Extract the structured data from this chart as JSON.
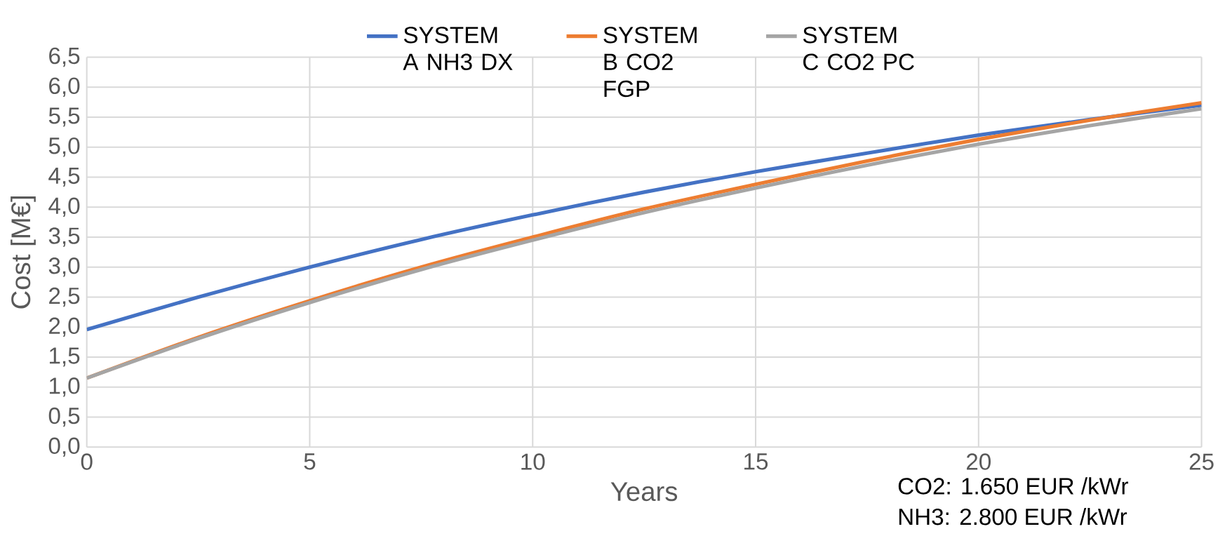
{
  "chart_data": {
    "type": "line",
    "xlabel": "Years",
    "ylabel": "Cost [M€]",
    "x": [
      0,
      2.5,
      5,
      7.5,
      10,
      12.5,
      15,
      17.5,
      20,
      22.5,
      25
    ],
    "series": [
      {
        "name": "SYSTEM A NH3 DX",
        "color": "#4472c4",
        "values": [
          1.96,
          2.5,
          3.0,
          3.46,
          3.87,
          4.25,
          4.59,
          4.9,
          5.2,
          5.46,
          5.7
        ]
      },
      {
        "name": "SYSTEM B CO2 FGP",
        "color": "#ed7d31",
        "values": [
          1.15,
          1.83,
          2.44,
          3.0,
          3.5,
          3.97,
          4.38,
          4.77,
          5.13,
          5.45,
          5.74
        ]
      },
      {
        "name": "SYSTEM C CO2 PC",
        "color": "#a5a5a5",
        "values": [
          1.15,
          1.81,
          2.41,
          2.96,
          3.45,
          3.91,
          4.32,
          4.7,
          5.05,
          5.36,
          5.64
        ]
      }
    ],
    "xlim": [
      0,
      25
    ],
    "xticks": [
      0,
      5,
      10,
      15,
      20,
      25
    ],
    "ylim": [
      0,
      6.5
    ],
    "yticks": [
      {
        "value": 0,
        "label": "0,0"
      },
      {
        "value": 0.5,
        "label": "0,5"
      },
      {
        "value": 1,
        "label": "1,0"
      },
      {
        "value": 1.5,
        "label": "1,5"
      },
      {
        "value": 2,
        "label": "2,0"
      },
      {
        "value": 2.5,
        "label": "2,5"
      },
      {
        "value": 3,
        "label": "3,0"
      },
      {
        "value": 3.5,
        "label": "3,5"
      },
      {
        "value": 4,
        "label": "4,0"
      },
      {
        "value": 4.5,
        "label": "4,5"
      },
      {
        "value": 5,
        "label": "5,0"
      },
      {
        "value": 5.5,
        "label": "5,5"
      },
      {
        "value": 6,
        "label": "6,0"
      },
      {
        "value": 6.5,
        "label": "6,5"
      }
    ],
    "grid": true,
    "legend": "top",
    "marker": "none",
    "line_style": "solid",
    "annotations": [
      "CO2: 1.650 EUR /kWr",
      "NH3: 2.800 EUR /kWr"
    ]
  }
}
